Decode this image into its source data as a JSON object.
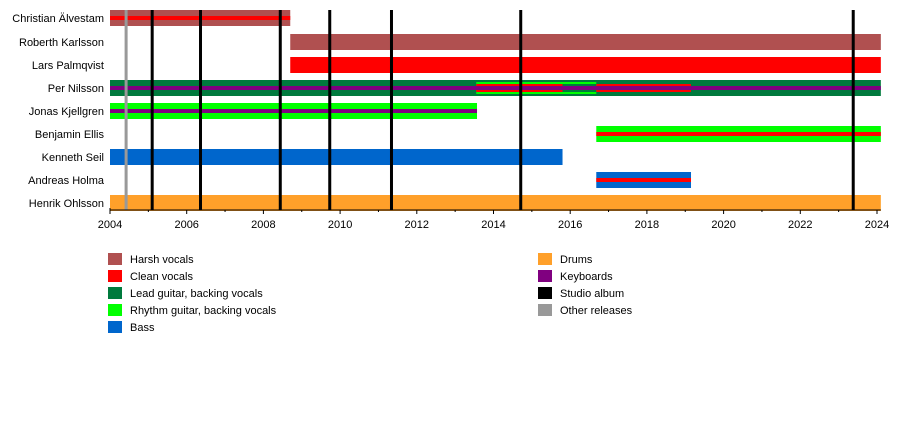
{
  "chart_data": {
    "type": "timeline",
    "xlim": [
      2004,
      2024.1
    ],
    "x_ticks": [
      "2004",
      "2006",
      "2008",
      "2010",
      "2012",
      "2014",
      "2016",
      "2018",
      "2020",
      "2022",
      "2024"
    ],
    "roles": {
      "harsh": {
        "label": "Harsh vocals",
        "color": "#B05050"
      },
      "clean": {
        "label": "Clean vocals",
        "color": "#FF0000"
      },
      "lead": {
        "label": "Lead guitar, backing vocals",
        "color": "#007A3D"
      },
      "rhythm": {
        "label": "Rhythm guitar, backing vocals",
        "color": "#00FF00"
      },
      "bass": {
        "label": "Bass",
        "color": "#0066CC"
      },
      "drums": {
        "label": "Drums",
        "color": "#FFA02A"
      },
      "keys": {
        "label": "Keyboards",
        "color": "#800080"
      },
      "studio": {
        "label": "Studio album",
        "color": "#000000"
      },
      "other": {
        "label": "Other releases",
        "color": "#999999"
      }
    },
    "legend_left": [
      "harsh",
      "clean",
      "lead",
      "rhythm",
      "bass"
    ],
    "legend_right": [
      "drums",
      "keys",
      "studio",
      "other"
    ],
    "members": [
      {
        "name": "Christian Älvestam",
        "segments": [
          {
            "role": "harsh",
            "start": 2004,
            "end": 2008.7,
            "layer": "main"
          },
          {
            "role": "clean",
            "start": 2004,
            "end": 2008.7,
            "layer": "stripe"
          }
        ]
      },
      {
        "name": "Roberth Karlsson",
        "segments": [
          {
            "role": "harsh",
            "start": 2008.7,
            "end": 2024.1,
            "layer": "main"
          }
        ]
      },
      {
        "name": "Lars Palmqvist",
        "segments": [
          {
            "role": "clean",
            "start": 2008.7,
            "end": 2024.1,
            "layer": "main"
          }
        ]
      },
      {
        "name": "Per Nilsson",
        "segments": [
          {
            "role": "lead",
            "start": 2004,
            "end": 2024.1,
            "layer": "main"
          },
          {
            "role": "rhythm",
            "start": 2013.55,
            "end": 2016.68,
            "layer": "inner"
          },
          {
            "role": "clean",
            "start": 2013.55,
            "end": 2015.8,
            "layer": "wide-stripe"
          },
          {
            "role": "clean",
            "start": 2016.68,
            "end": 2019.15,
            "layer": "wide-stripe"
          },
          {
            "role": "keys",
            "start": 2004,
            "end": 2024.1,
            "layer": "stripe"
          }
        ]
      },
      {
        "name": "Jonas Kjellgren",
        "segments": [
          {
            "role": "rhythm",
            "start": 2004,
            "end": 2013.57,
            "layer": "main"
          },
          {
            "role": "keys",
            "start": 2004,
            "end": 2013.57,
            "layer": "stripe"
          }
        ]
      },
      {
        "name": "Benjamin Ellis",
        "segments": [
          {
            "role": "rhythm",
            "start": 2016.68,
            "end": 2024.1,
            "layer": "main"
          },
          {
            "role": "clean",
            "start": 2016.68,
            "end": 2024.1,
            "layer": "stripe"
          }
        ]
      },
      {
        "name": "Kenneth Seil",
        "segments": [
          {
            "role": "bass",
            "start": 2004,
            "end": 2015.8,
            "layer": "main"
          }
        ]
      },
      {
        "name": "Andreas Holma",
        "segments": [
          {
            "role": "bass",
            "start": 2016.68,
            "end": 2019.15,
            "layer": "main"
          },
          {
            "role": "clean",
            "start": 2016.68,
            "end": 2019.15,
            "layer": "stripe"
          }
        ]
      },
      {
        "name": "Henrik Ohlsson",
        "segments": [
          {
            "role": "drums",
            "start": 2004,
            "end": 2024.1,
            "layer": "main"
          }
        ]
      }
    ],
    "studio_albums": [
      2005.1,
      2006.36,
      2008.44,
      2009.73,
      2011.34,
      2014.71,
      2023.38
    ],
    "other_releases": [
      2004.42
    ]
  }
}
